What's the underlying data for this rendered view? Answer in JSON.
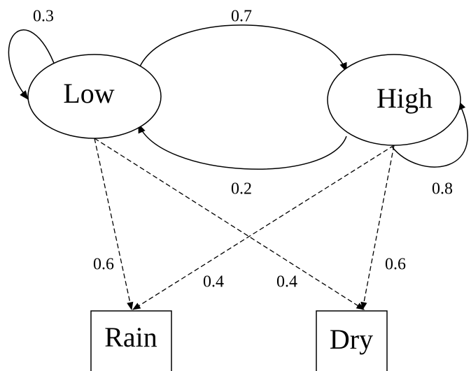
{
  "nodes": [
    {
      "label": "Low"
    },
    {
      "label": "High"
    },
    {
      "label": "Rain"
    },
    {
      "label": "Dry"
    }
  ],
  "edges": [
    {
      "from": "Low",
      "to": "Low",
      "label": "0.3"
    },
    {
      "from": "Low",
      "to": "High",
      "label": "0.7"
    },
    {
      "from": "High",
      "to": "Low",
      "label": "0.2"
    },
    {
      "from": "High",
      "to": "High",
      "label": "0.8"
    },
    {
      "from": "Low",
      "to": "Rain",
      "label": "0.6"
    },
    {
      "from": "High",
      "to": "Rain",
      "label": "0.4"
    },
    {
      "from": "Low",
      "to": "Dry",
      "label": "0.4"
    },
    {
      "from": "High",
      "to": "Dry",
      "label": "0.6"
    }
  ]
}
